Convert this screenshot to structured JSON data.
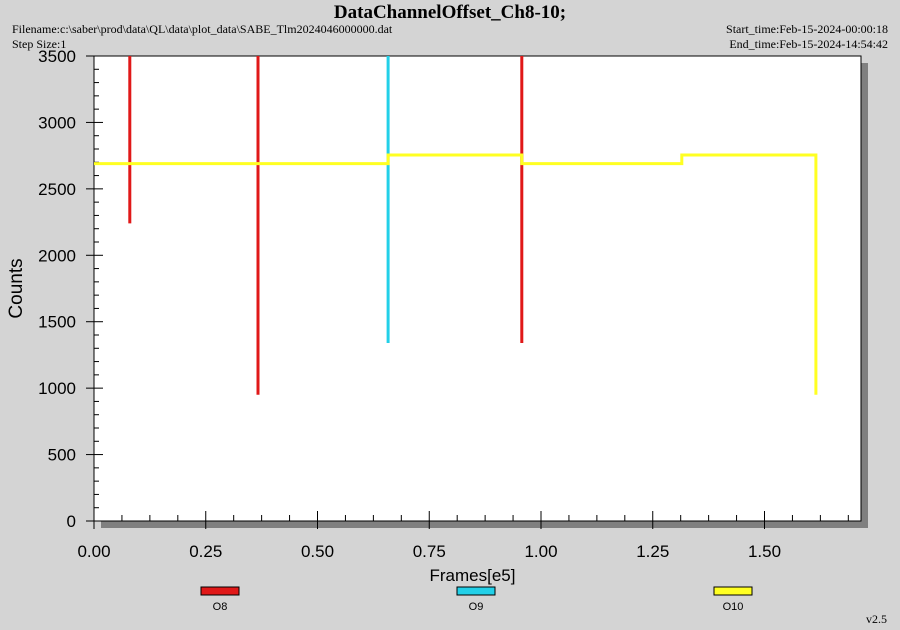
{
  "header": {
    "title": "DataChannelOffset_Ch8-10;",
    "filename": "Filename:c:\\saber\\prod\\data\\QL\\data\\plot_data\\SABE_Tlm2024046000000.dat",
    "step_size": "Step Size:1",
    "start_time": "Start_time:Feb-15-2024-00:00:18",
    "end_time": "End_time:Feb-15-2024-14:54:42"
  },
  "version": "v2.5",
  "colors": {
    "O8": "#e01818",
    "O9": "#22d0e8",
    "O10": "#ffff22",
    "background": "#d4d4d4",
    "plot": "#ffffff"
  },
  "chart_data": {
    "type": "line",
    "title": "DataChannelOffset_Ch8-10;",
    "xlabel": "Frames[e5]",
    "ylabel": "Counts",
    "xlim": [
      0,
      1.7
    ],
    "ylim": [
      0,
      3500
    ],
    "x_ticks": [
      "0.00",
      "0.25",
      "0.50",
      "0.75",
      "1.00",
      "1.25",
      "1.50"
    ],
    "y_ticks": [
      "0",
      "500",
      "1000",
      "1500",
      "2000",
      "2500",
      "3000",
      "3500"
    ],
    "grid": false,
    "legend_position": "bottom",
    "series": [
      {
        "name": "O8",
        "color": "#e01818",
        "segments": [
          [
            [
              0.08,
              2240
            ],
            [
              0.08,
              3500
            ]
          ],
          [
            [
              0.367,
              950
            ],
            [
              0.367,
              3500
            ]
          ],
          [
            [
              0.957,
              1340
            ],
            [
              0.957,
              3500
            ]
          ]
        ]
      },
      {
        "name": "O9",
        "color": "#22d0e8",
        "segments": [
          [
            [
              0.658,
              1340
            ],
            [
              0.658,
              3500
            ]
          ]
        ]
      },
      {
        "name": "O10",
        "color": "#ffff22",
        "segments": [
          [
            [
              0.0,
              2690
            ],
            [
              0.658,
              2690
            ],
            [
              0.658,
              2755
            ],
            [
              0.957,
              2755
            ],
            [
              0.957,
              2690
            ],
            [
              1.315,
              2690
            ],
            [
              1.315,
              2755
            ],
            [
              1.615,
              2755
            ],
            [
              1.615,
              950
            ]
          ]
        ]
      }
    ]
  }
}
